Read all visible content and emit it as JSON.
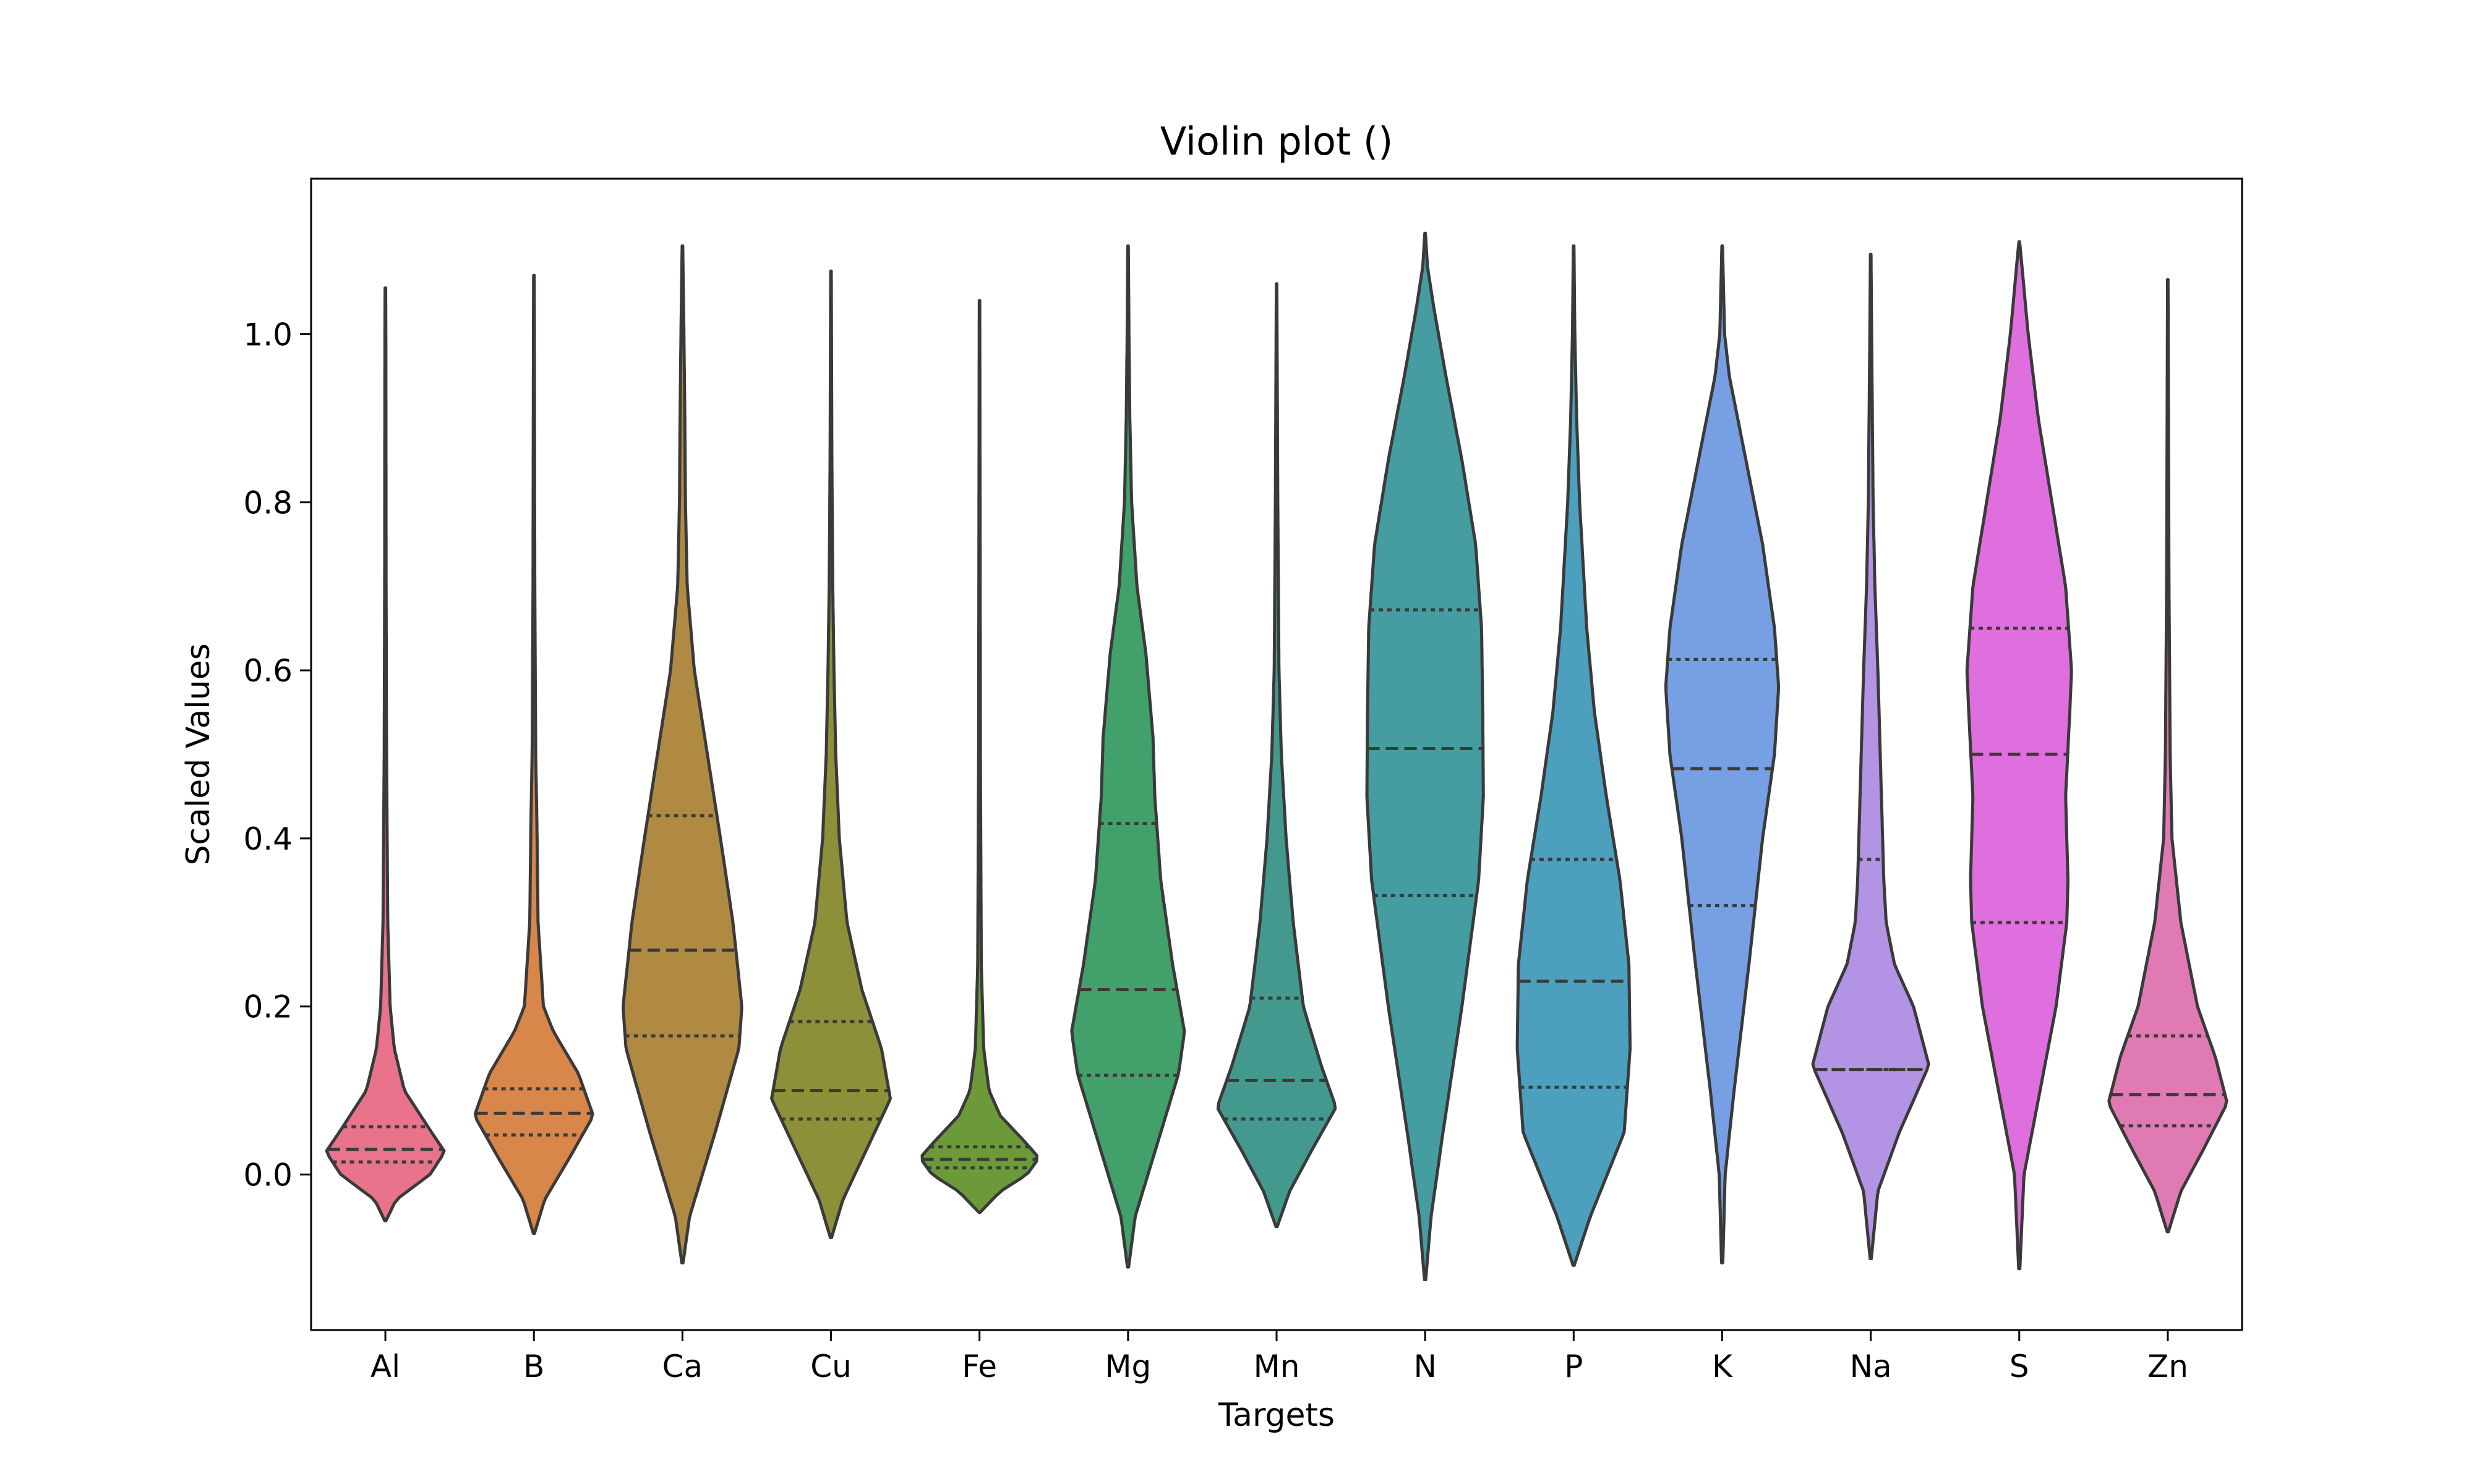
{
  "chart_data": {
    "type": "violin",
    "title": "Violin plot ()",
    "xlabel": "Targets",
    "ylabel": "Scaled Values",
    "ylim": [
      -0.185,
      1.185
    ],
    "yticks": [
      0.0,
      0.2,
      0.4,
      0.6,
      0.8,
      1.0
    ],
    "ytick_labels": [
      "0.0",
      "0.2",
      "0.4",
      "0.6",
      "0.8",
      "1.0"
    ],
    "grid": false,
    "categories": [
      "Al",
      "B",
      "Ca",
      "Cu",
      "Fe",
      "Mg",
      "Mn",
      "N",
      "P",
      "K",
      "Na",
      "S",
      "Zn"
    ],
    "series": [
      {
        "category": "Al",
        "color": "#e8738a",
        "q1": 0.015,
        "median": 0.03,
        "q3": 0.057,
        "min": -0.055,
        "max": 1.055,
        "profile": [
          [
            -0.055,
            0.01
          ],
          [
            -0.03,
            0.18
          ],
          [
            0.0,
            0.75
          ],
          [
            0.027,
            1.0
          ],
          [
            0.05,
            0.78
          ],
          [
            0.1,
            0.32
          ],
          [
            0.15,
            0.15
          ],
          [
            0.2,
            0.08
          ],
          [
            0.3,
            0.04
          ],
          [
            0.5,
            0.02
          ],
          [
            0.7,
            0.012
          ],
          [
            1.0,
            0.008
          ],
          [
            1.055,
            0.005
          ]
        ]
      },
      {
        "category": "B",
        "color": "#d9864a",
        "q1": 0.047,
        "median": 0.073,
        "q3": 0.102,
        "min": -0.07,
        "max": 1.07,
        "profile": [
          [
            -0.07,
            0.01
          ],
          [
            -0.03,
            0.18
          ],
          [
            0.02,
            0.6
          ],
          [
            0.07,
            1.0
          ],
          [
            0.12,
            0.75
          ],
          [
            0.17,
            0.33
          ],
          [
            0.2,
            0.16
          ],
          [
            0.3,
            0.07
          ],
          [
            0.42,
            0.05
          ],
          [
            0.5,
            0.03
          ],
          [
            0.7,
            0.015
          ],
          [
            1.0,
            0.008
          ],
          [
            1.07,
            0.005
          ]
        ]
      },
      {
        "category": "Ca",
        "color": "#b08a43",
        "q1": 0.165,
        "median": 0.267,
        "q3": 0.427,
        "min": -0.105,
        "max": 1.105,
        "profile": [
          [
            -0.105,
            0.01
          ],
          [
            -0.05,
            0.12
          ],
          [
            0.05,
            0.55
          ],
          [
            0.15,
            0.95
          ],
          [
            0.2,
            1.0
          ],
          [
            0.3,
            0.85
          ],
          [
            0.4,
            0.64
          ],
          [
            0.5,
            0.42
          ],
          [
            0.6,
            0.2
          ],
          [
            0.7,
            0.08
          ],
          [
            0.8,
            0.05
          ],
          [
            0.9,
            0.04
          ],
          [
            1.0,
            0.025
          ],
          [
            1.105,
            0.005
          ]
        ]
      },
      {
        "category": "Cu",
        "color": "#8c9039",
        "q1": 0.066,
        "median": 0.1,
        "q3": 0.182,
        "min": -0.075,
        "max": 1.075,
        "profile": [
          [
            -0.075,
            0.01
          ],
          [
            -0.03,
            0.2
          ],
          [
            0.03,
            0.6
          ],
          [
            0.09,
            1.0
          ],
          [
            0.15,
            0.85
          ],
          [
            0.22,
            0.52
          ],
          [
            0.3,
            0.27
          ],
          [
            0.4,
            0.14
          ],
          [
            0.5,
            0.08
          ],
          [
            0.6,
            0.05
          ],
          [
            0.7,
            0.03
          ],
          [
            0.85,
            0.015
          ],
          [
            1.075,
            0.005
          ]
        ]
      },
      {
        "category": "Fe",
        "color": "#6d9a39",
        "q1": 0.008,
        "median": 0.018,
        "q3": 0.033,
        "min": -0.045,
        "max": 1.04,
        "profile": [
          [
            -0.045,
            0.01
          ],
          [
            -0.02,
            0.35
          ],
          [
            0.0,
            0.8
          ],
          [
            0.02,
            1.0
          ],
          [
            0.04,
            0.75
          ],
          [
            0.07,
            0.35
          ],
          [
            0.1,
            0.16
          ],
          [
            0.15,
            0.07
          ],
          [
            0.25,
            0.03
          ],
          [
            0.5,
            0.015
          ],
          [
            1.0,
            0.005
          ],
          [
            1.04,
            0.004
          ]
        ]
      },
      {
        "category": "Mg",
        "color": "#42a06b",
        "q1": 0.118,
        "median": 0.22,
        "q3": 0.418,
        "min": -0.11,
        "max": 1.105,
        "profile": [
          [
            -0.11,
            0.01
          ],
          [
            -0.05,
            0.12
          ],
          [
            0.05,
            0.55
          ],
          [
            0.12,
            0.85
          ],
          [
            0.17,
            0.95
          ],
          [
            0.25,
            0.75
          ],
          [
            0.35,
            0.55
          ],
          [
            0.45,
            0.45
          ],
          [
            0.52,
            0.42
          ],
          [
            0.62,
            0.3
          ],
          [
            0.7,
            0.15
          ],
          [
            0.8,
            0.06
          ],
          [
            0.9,
            0.03
          ],
          [
            1.0,
            0.015
          ],
          [
            1.105,
            0.005
          ]
        ]
      },
      {
        "category": "Mn",
        "color": "#43998d",
        "q1": 0.066,
        "median": 0.112,
        "q3": 0.21,
        "min": -0.062,
        "max": 1.06,
        "profile": [
          [
            -0.062,
            0.01
          ],
          [
            -0.02,
            0.22
          ],
          [
            0.03,
            0.6
          ],
          [
            0.08,
            1.0
          ],
          [
            0.13,
            0.75
          ],
          [
            0.2,
            0.45
          ],
          [
            0.3,
            0.28
          ],
          [
            0.4,
            0.16
          ],
          [
            0.5,
            0.08
          ],
          [
            0.6,
            0.04
          ],
          [
            0.8,
            0.02
          ],
          [
            1.06,
            0.004
          ]
        ]
      },
      {
        "category": "N",
        "color": "#459ca1",
        "q1": 0.332,
        "median": 0.507,
        "q3": 0.672,
        "min": -0.125,
        "max": 1.12,
        "profile": [
          [
            -0.125,
            0.01
          ],
          [
            -0.05,
            0.1
          ],
          [
            0.05,
            0.3
          ],
          [
            0.2,
            0.62
          ],
          [
            0.35,
            0.9
          ],
          [
            0.45,
            0.98
          ],
          [
            0.55,
            0.97
          ],
          [
            0.65,
            0.95
          ],
          [
            0.75,
            0.85
          ],
          [
            0.85,
            0.62
          ],
          [
            0.95,
            0.35
          ],
          [
            1.03,
            0.15
          ],
          [
            1.08,
            0.04
          ],
          [
            1.12,
            0.005
          ]
        ]
      },
      {
        "category": "P",
        "color": "#4ca0bd",
        "q1": 0.104,
        "median": 0.23,
        "q3": 0.375,
        "min": -0.108,
        "max": 1.105,
        "profile": [
          [
            -0.108,
            0.01
          ],
          [
            -0.05,
            0.28
          ],
          [
            0.05,
            0.85
          ],
          [
            0.15,
            0.95
          ],
          [
            0.25,
            0.93
          ],
          [
            0.35,
            0.78
          ],
          [
            0.45,
            0.55
          ],
          [
            0.55,
            0.35
          ],
          [
            0.65,
            0.22
          ],
          [
            0.7,
            0.18
          ],
          [
            0.8,
            0.1
          ],
          [
            0.9,
            0.05
          ],
          [
            1.0,
            0.02
          ],
          [
            1.105,
            0.005
          ]
        ]
      },
      {
        "category": "K",
        "color": "#76a0e3",
        "q1": 0.32,
        "median": 0.483,
        "q3": 0.613,
        "min": -0.105,
        "max": 1.105,
        "profile": [
          [
            -0.105,
            0.01
          ],
          [
            0.0,
            0.05
          ],
          [
            0.1,
            0.2
          ],
          [
            0.25,
            0.45
          ],
          [
            0.4,
            0.68
          ],
          [
            0.5,
            0.88
          ],
          [
            0.58,
            0.95
          ],
          [
            0.65,
            0.88
          ],
          [
            0.75,
            0.68
          ],
          [
            0.85,
            0.4
          ],
          [
            0.95,
            0.12
          ],
          [
            1.0,
            0.04
          ],
          [
            1.105,
            0.005
          ]
        ]
      },
      {
        "category": "Na",
        "color": "#b393e3",
        "q1": 0.125,
        "median": 0.125,
        "q3": 0.375,
        "min": -0.1,
        "max": 1.095,
        "profile": [
          [
            -0.1,
            0.01
          ],
          [
            -0.02,
            0.12
          ],
          [
            0.05,
            0.48
          ],
          [
            0.13,
            0.98
          ],
          [
            0.2,
            0.72
          ],
          [
            0.25,
            0.4
          ],
          [
            0.3,
            0.26
          ],
          [
            0.35,
            0.22
          ],
          [
            0.4,
            0.2
          ],
          [
            0.5,
            0.16
          ],
          [
            0.6,
            0.12
          ],
          [
            0.7,
            0.07
          ],
          [
            0.8,
            0.04
          ],
          [
            1.0,
            0.015
          ],
          [
            1.095,
            0.005
          ]
        ]
      },
      {
        "category": "S",
        "color": "#df6fdf",
        "q1": 0.3,
        "median": 0.5,
        "q3": 0.65,
        "min": -0.112,
        "max": 1.11,
        "profile": [
          [
            -0.112,
            0.01
          ],
          [
            0.0,
            0.08
          ],
          [
            0.1,
            0.35
          ],
          [
            0.2,
            0.62
          ],
          [
            0.3,
            0.8
          ],
          [
            0.35,
            0.82
          ],
          [
            0.45,
            0.78
          ],
          [
            0.55,
            0.85
          ],
          [
            0.6,
            0.88
          ],
          [
            0.7,
            0.78
          ],
          [
            0.8,
            0.55
          ],
          [
            0.9,
            0.32
          ],
          [
            1.0,
            0.15
          ],
          [
            1.1,
            0.02
          ],
          [
            1.11,
            0.005
          ]
        ]
      },
      {
        "category": "Zn",
        "color": "#e07ab3",
        "q1": 0.058,
        "median": 0.095,
        "q3": 0.165,
        "min": -0.068,
        "max": 1.065,
        "profile": [
          [
            -0.068,
            0.01
          ],
          [
            -0.02,
            0.22
          ],
          [
            0.03,
            0.6
          ],
          [
            0.085,
            1.0
          ],
          [
            0.14,
            0.8
          ],
          [
            0.2,
            0.5
          ],
          [
            0.3,
            0.22
          ],
          [
            0.4,
            0.07
          ],
          [
            0.5,
            0.04
          ],
          [
            0.7,
            0.02
          ],
          [
            1.065,
            0.004
          ]
        ]
      }
    ]
  }
}
